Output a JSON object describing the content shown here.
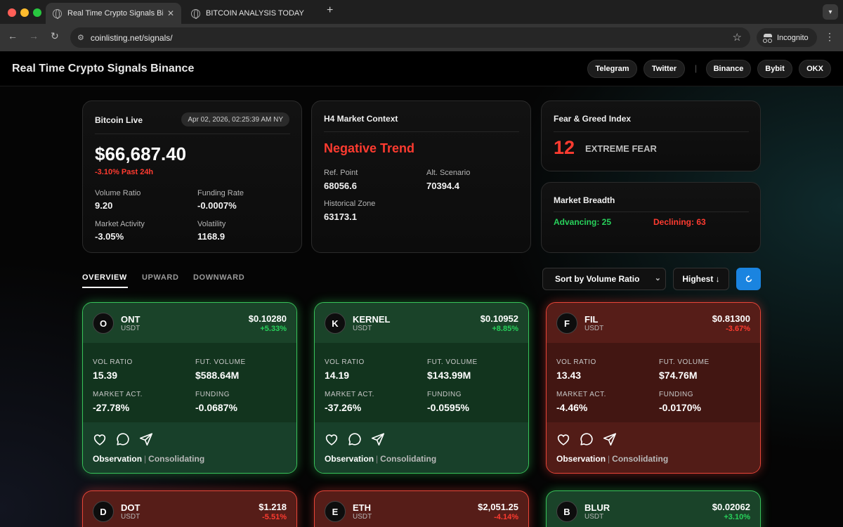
{
  "browser": {
    "tabs": [
      {
        "title": "Real Time Crypto Signals Binance"
      },
      {
        "title": "BITCOIN ANALYSIS TODAY"
      }
    ],
    "url": "coinlisting.net/signals/",
    "incognito_label": "Incognito"
  },
  "header": {
    "title": "Real Time Crypto Signals Binance",
    "social": [
      "Telegram",
      "Twitter"
    ],
    "exchanges": [
      "Binance",
      "Bybit",
      "OKX"
    ]
  },
  "bitcoin_live": {
    "title": "Bitcoin Live",
    "timestamp": "Apr 02, 2026, 02:25:39 AM NY",
    "price": "$66,687.40",
    "change": "-3.10% Past 24h",
    "stats": [
      {
        "label": "Volume Ratio",
        "value": "9.20"
      },
      {
        "label": "Funding Rate",
        "value": "-0.0007%"
      },
      {
        "label": "Market Activity",
        "value": "-3.05%"
      },
      {
        "label": "Volatility",
        "value": "1168.9"
      }
    ]
  },
  "h4_context": {
    "title": "H4 Market Context",
    "trend": "Negative Trend",
    "stats": [
      {
        "label": "Ref. Point",
        "value": "68056.6"
      },
      {
        "label": "Alt. Scenario",
        "value": "70394.4"
      },
      {
        "label": "Historical Zone",
        "value": "63173.1"
      }
    ]
  },
  "fear_greed": {
    "title": "Fear & Greed Index",
    "value": "12",
    "label": "EXTREME FEAR"
  },
  "market_breadth": {
    "title": "Market Breadth",
    "advancing": "Advancing: 25",
    "declining": "Declining: 63"
  },
  "view_tabs": [
    "OVERVIEW",
    "UPWARD",
    "DOWNWARD"
  ],
  "controls": {
    "sort": "Sort by Volume Ratio",
    "order": "Highest ↓",
    "refresh_icon": "refresh-icon"
  },
  "colors": {
    "up": "#28d15b",
    "down": "#ff3b30",
    "accent": "#1a84e0"
  },
  "metric_labels": {
    "vol_ratio": "VOL RATIO",
    "fut_volume": "FUT. VOLUME",
    "market_act": "MARKET ACT.",
    "funding": "FUNDING"
  },
  "cards": [
    {
      "letter": "O",
      "symbol": "ONT",
      "quote": "USDT",
      "price": "$0.10280",
      "change": "+5.33%",
      "trend": "up",
      "vol_ratio": "15.39",
      "fut_volume": "$588.64M",
      "market_act": "-27.78%",
      "funding": "-0.0687%",
      "status": "Observation",
      "substatus": "Consolidating"
    },
    {
      "letter": "K",
      "symbol": "KERNEL",
      "quote": "USDT",
      "price": "$0.10952",
      "change": "+8.85%",
      "trend": "up",
      "vol_ratio": "14.19",
      "fut_volume": "$143.99M",
      "market_act": "-37.26%",
      "funding": "-0.0595%",
      "status": "Observation",
      "substatus": "Consolidating"
    },
    {
      "letter": "F",
      "symbol": "FIL",
      "quote": "USDT",
      "price": "$0.81300",
      "change": "-3.67%",
      "trend": "down",
      "vol_ratio": "13.43",
      "fut_volume": "$74.76M",
      "market_act": "-4.46%",
      "funding": "-0.0170%",
      "status": "Observation",
      "substatus": "Consolidating"
    }
  ],
  "cards_partial": [
    {
      "letter": "D",
      "symbol": "DOT",
      "quote": "USDT",
      "price": "$1.218",
      "change": "-5.51%",
      "trend": "down"
    },
    {
      "letter": "E",
      "symbol": "ETH",
      "quote": "USDT",
      "price": "$2,051.25",
      "change": "-4.14%",
      "trend": "down"
    },
    {
      "letter": "B",
      "symbol": "BLUR",
      "quote": "USDT",
      "price": "$0.02062",
      "change": "+3.10%",
      "trend": "up"
    }
  ]
}
